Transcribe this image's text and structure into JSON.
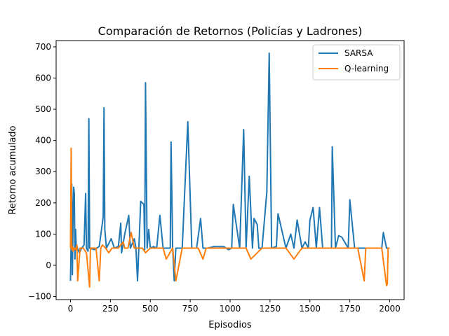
{
  "chart_data": {
    "type": "line",
    "title": "Comparación de Retornos (Policías y Ladrones)",
    "xlabel": "Episodios",
    "ylabel": "Retorno acumulado",
    "xlim": [
      -90,
      2090
    ],
    "ylim": [
      -110,
      720
    ],
    "xticks": [
      0,
      250,
      500,
      750,
      1000,
      1250,
      1500,
      1750,
      2000
    ],
    "yticks": [
      -100,
      0,
      100,
      200,
      300,
      400,
      500,
      600,
      700
    ],
    "legend_position": "upper-right",
    "grid": false,
    "series": [
      {
        "name": "SARSA",
        "color": "#1f77b4",
        "x": [
          0,
          4,
          8,
          12,
          16,
          20,
          24,
          28,
          32,
          36,
          40,
          55,
          70,
          85,
          95,
          100,
          110,
          115,
          120,
          150,
          180,
          205,
          210,
          215,
          225,
          255,
          275,
          300,
          315,
          320,
          340,
          365,
          375,
          400,
          410,
          420,
          440,
          450,
          460,
          465,
          470,
          480,
          490,
          500,
          520,
          540,
          560,
          580,
          600,
          625,
          630,
          640,
          650,
          660,
          680,
          700,
          735,
          760,
          790,
          810,
          815,
          830,
          860,
          900,
          960,
          990,
          1010,
          1020,
          1060,
          1085,
          1100,
          1120,
          1140,
          1150,
          1170,
          1180,
          1200,
          1230,
          1245,
          1260,
          1290,
          1300,
          1350,
          1380,
          1400,
          1420,
          1450,
          1470,
          1490,
          1500,
          1520,
          1540,
          1560,
          1580,
          1600,
          1635,
          1640,
          1660,
          1680,
          1700,
          1740,
          1750,
          1780,
          1800,
          1850,
          1900,
          1950,
          1960,
          1980,
          2000
        ],
        "y": [
          -50,
          75,
          260,
          -30,
          160,
          250,
          230,
          20,
          115,
          55,
          60,
          40,
          55,
          65,
          230,
          55,
          45,
          470,
          55,
          50,
          60,
          155,
          505,
          115,
          55,
          85,
          55,
          60,
          135,
          40,
          100,
          160,
          55,
          85,
          55,
          -50,
          205,
          200,
          195,
          50,
          585,
          55,
          115,
          55,
          60,
          55,
          160,
          55,
          55,
          55,
          395,
          55,
          -50,
          55,
          55,
          55,
          460,
          55,
          55,
          130,
          150,
          55,
          55,
          60,
          60,
          50,
          55,
          195,
          55,
          435,
          55,
          285,
          55,
          150,
          130,
          55,
          55,
          235,
          680,
          55,
          60,
          165,
          55,
          100,
          55,
          145,
          55,
          75,
          55,
          145,
          185,
          55,
          185,
          55,
          55,
          55,
          380,
          55,
          95,
          90,
          55,
          210,
          55,
          55,
          55,
          55,
          55,
          105,
          55,
          55
        ]
      },
      {
        "name": "Q-learning",
        "color": "#ff7f0e",
        "x": [
          0,
          4,
          8,
          12,
          16,
          20,
          24,
          28,
          35,
          40,
          45,
          60,
          80,
          100,
          120,
          125,
          160,
          180,
          190,
          200,
          220,
          240,
          260,
          300,
          330,
          340,
          360,
          380,
          400,
          420,
          450,
          470,
          500,
          520,
          550,
          580,
          600,
          640,
          660,
          700,
          740,
          780,
          800,
          830,
          850,
          900,
          1000,
          1050,
          1100,
          1130,
          1200,
          1250,
          1300,
          1350,
          1400,
          1450,
          1500,
          1550,
          1600,
          1650,
          1700,
          1750,
          1800,
          1840,
          1850,
          1900,
          1950,
          1980,
          1985,
          1990,
          2000
        ],
        "y": [
          55,
          375,
          50,
          60,
          45,
          55,
          50,
          55,
          50,
          65,
          -50,
          55,
          55,
          40,
          -70,
          55,
          55,
          -50,
          55,
          65,
          55,
          40,
          55,
          55,
          75,
          55,
          55,
          105,
          55,
          55,
          55,
          40,
          55,
          55,
          55,
          55,
          20,
          55,
          -50,
          55,
          55,
          55,
          55,
          20,
          55,
          55,
          55,
          55,
          55,
          20,
          55,
          55,
          55,
          55,
          20,
          55,
          55,
          55,
          55,
          55,
          55,
          55,
          55,
          -50,
          55,
          55,
          55,
          -65,
          -60,
          55,
          55
        ]
      }
    ]
  }
}
